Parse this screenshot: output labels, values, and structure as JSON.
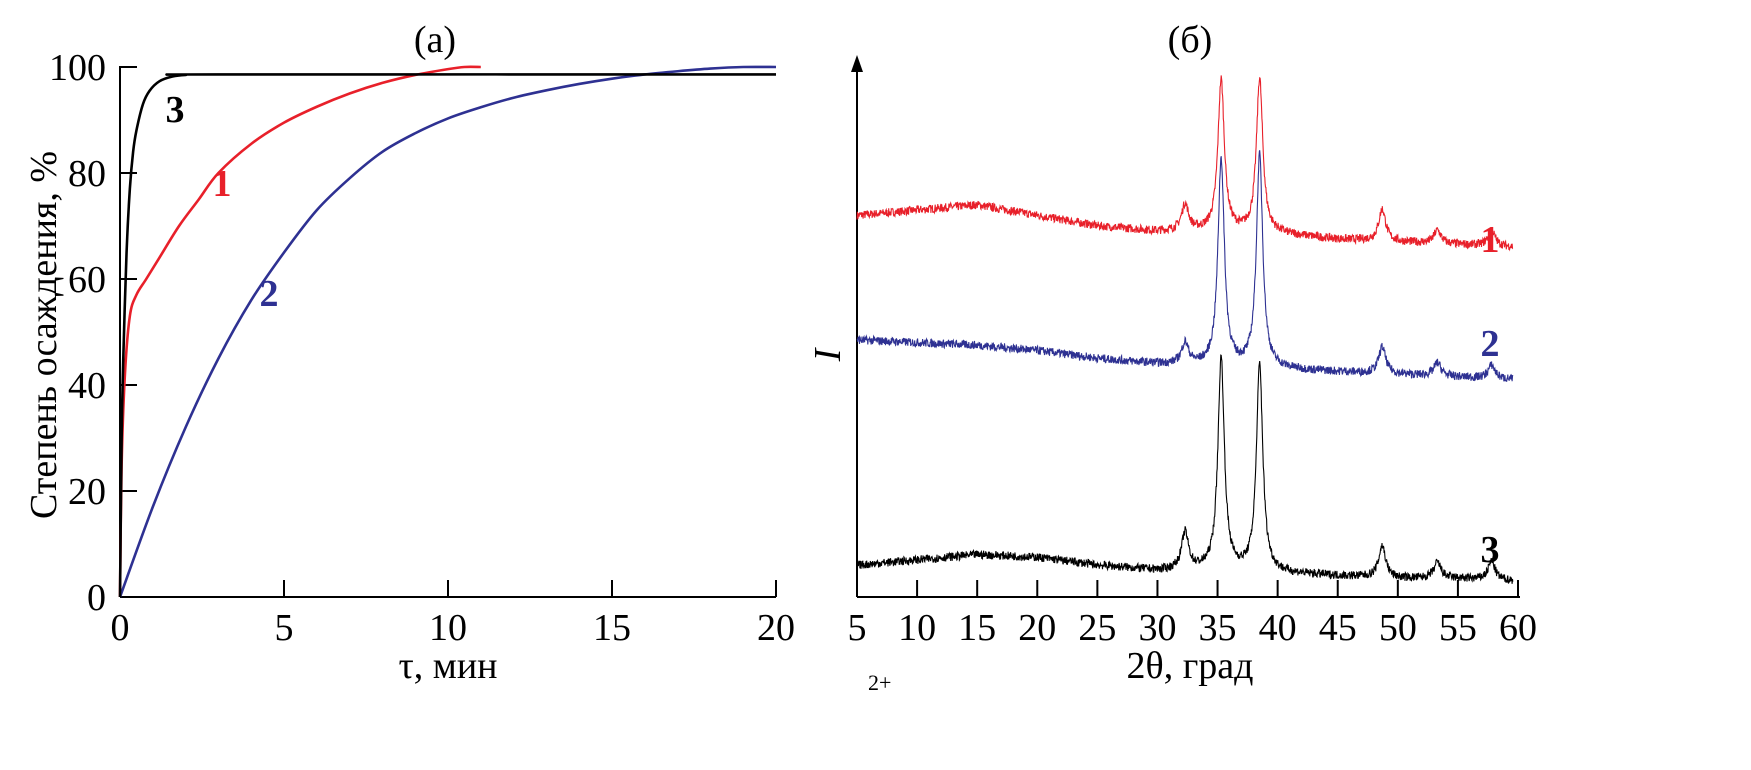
{
  "chart_data": [
    {
      "type": "line",
      "title": "(а)",
      "xlabel": "τ, мин",
      "ylabel": "Степень осаждения, %",
      "xlim": [
        0,
        20
      ],
      "ylim": [
        0,
        100
      ],
      "xticks": [
        "0",
        "5",
        "10",
        "15",
        "20"
      ],
      "yticks": [
        "0",
        "20",
        "40",
        "60",
        "80",
        "100"
      ],
      "grid": false,
      "series": [
        {
          "name": "1",
          "color": "#e8202a",
          "x": [
            0,
            0.05,
            0.15,
            0.3,
            0.5,
            0.8,
            1.2,
            1.8,
            2.4,
            3,
            4,
            5,
            6,
            7,
            8,
            9,
            10,
            10.5,
            11
          ],
          "y": [
            0,
            25,
            42,
            53,
            57,
            60,
            64,
            70,
            75,
            80,
            85.5,
            89.5,
            92.5,
            95,
            97,
            98.5,
            99.6,
            100,
            100
          ]
        },
        {
          "name": "2",
          "color": "#2e3192",
          "x": [
            0,
            1,
            2,
            3,
            4,
            5,
            6,
            7,
            8,
            9,
            10,
            11,
            12,
            13,
            14,
            15,
            16,
            17,
            18,
            19,
            20
          ],
          "y": [
            0,
            17,
            32,
            45,
            56,
            65,
            73,
            79,
            84,
            87.5,
            90.3,
            92.4,
            94.2,
            95.6,
            96.8,
            97.8,
            98.6,
            99.2,
            99.7,
            100,
            100
          ]
        },
        {
          "name": "3",
          "color": "#000000",
          "x": [
            0,
            0.05,
            0.1,
            0.2,
            0.3,
            0.4,
            0.5,
            0.7,
            0.9,
            1.2,
            1.6,
            2,
            3,
            20
          ],
          "y": [
            0,
            30,
            45,
            65,
            77,
            84,
            88,
            93,
            95.5,
            97.3,
            98.2,
            98.5,
            98.6,
            98.6
          ]
        }
      ]
    },
    {
      "type": "line",
      "title": "(б)",
      "xlabel": "2θ, град",
      "ylabel": "I",
      "xlim": [
        5,
        60
      ],
      "ylim": [
        0,
        100
      ],
      "xticks": [
        "5",
        "10",
        "15",
        "20",
        "25",
        "30",
        "35",
        "40",
        "45",
        "50",
        "55",
        "60"
      ],
      "grid": false,
      "y_units": "arbitrary, stacked (offset) patterns",
      "series": [
        {
          "name": "1",
          "color": "#e8202a",
          "baseline_x": [
            5,
            10,
            15,
            20,
            25,
            30,
            35,
            40,
            45,
            50,
            55,
            60
          ],
          "baseline_y": [
            72,
            73,
            74,
            72,
            70,
            69,
            69,
            68.5,
            67.5,
            67,
            66.5,
            66
          ],
          "peaks_2theta": [
            32.3,
            35.3,
            38.5,
            48.7,
            53.3,
            57.8
          ],
          "peaks_height": [
            5,
            28.5,
            29,
            6,
            2.5,
            3
          ]
        },
        {
          "name": "2",
          "color": "#2e3192",
          "baseline_x": [
            5,
            10,
            15,
            20,
            25,
            30,
            35,
            40,
            45,
            50,
            55,
            60
          ],
          "baseline_y": [
            48.5,
            48,
            47.5,
            46.5,
            45,
            44,
            43.5,
            43,
            42.5,
            42,
            41.5,
            41
          ],
          "peaks_2theta": [
            32.3,
            35.3,
            38.5,
            48.7,
            53.3,
            57.8
          ],
          "peaks_height": [
            4,
            39,
            40,
            5,
            2.5,
            2.5
          ]
        },
        {
          "name": "3",
          "color": "#000000",
          "baseline_x": [
            5,
            10,
            15,
            20,
            25,
            30,
            35,
            40,
            45,
            50,
            55,
            60
          ],
          "baseline_y": [
            6,
            7,
            8,
            7.5,
            6,
            5,
            5,
            4.5,
            4,
            3.5,
            3.5,
            3
          ],
          "peaks_2theta": [
            32.3,
            35.3,
            38.5,
            48.7,
            53.3,
            57.8
          ],
          "peaks_height": [
            7,
            40,
            39,
            6,
            3,
            3.5
          ]
        }
      ]
    }
  ],
  "caption_fragment": "2+"
}
